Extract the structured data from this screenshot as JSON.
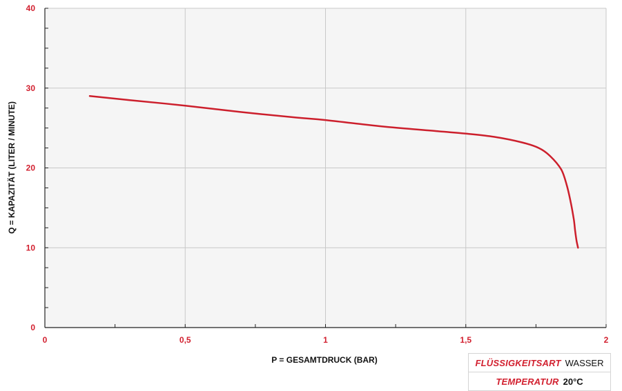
{
  "chart_data": {
    "type": "line",
    "xlabel": "P = GESAMTDRUCK (BAR)",
    "ylabel": "Q = KAPAZITÄT (LITER / MINUTE)",
    "xlim": [
      0,
      2
    ],
    "ylim": [
      0,
      40
    ],
    "x_ticks": [
      0,
      0.5,
      1,
      1.5,
      2
    ],
    "x_tick_labels": [
      "0",
      "0,5",
      "1",
      "1,5",
      "2"
    ],
    "y_ticks": [
      0,
      10,
      20,
      30,
      40
    ],
    "y_tick_labels": [
      "0",
      "10",
      "20",
      "30",
      "40"
    ],
    "grid": true,
    "colors": {
      "line": "#cc1f2c",
      "ticks": "#d2202f",
      "grid": "#c8c8c8",
      "plot_bg": "#f5f5f5"
    },
    "series": [
      {
        "x": [
          0.16,
          0.3,
          0.5,
          0.7,
          0.9,
          1.0,
          1.2,
          1.4,
          1.5,
          1.6,
          1.7,
          1.76,
          1.8,
          1.84,
          1.86,
          1.875,
          1.885,
          1.89,
          1.895,
          1.9
        ],
        "y": [
          29.0,
          28.5,
          27.8,
          27.0,
          26.3,
          26.0,
          25.2,
          24.6,
          24.3,
          23.9,
          23.2,
          22.5,
          21.5,
          19.8,
          17.8,
          15.5,
          13.5,
          12.0,
          10.8,
          10.0
        ]
      }
    ]
  },
  "info_table": [
    {
      "key": "FLÜSSIGKEITSART",
      "value": "WASSER"
    },
    {
      "key": "TEMPERATUR",
      "value": "20°C"
    }
  ]
}
